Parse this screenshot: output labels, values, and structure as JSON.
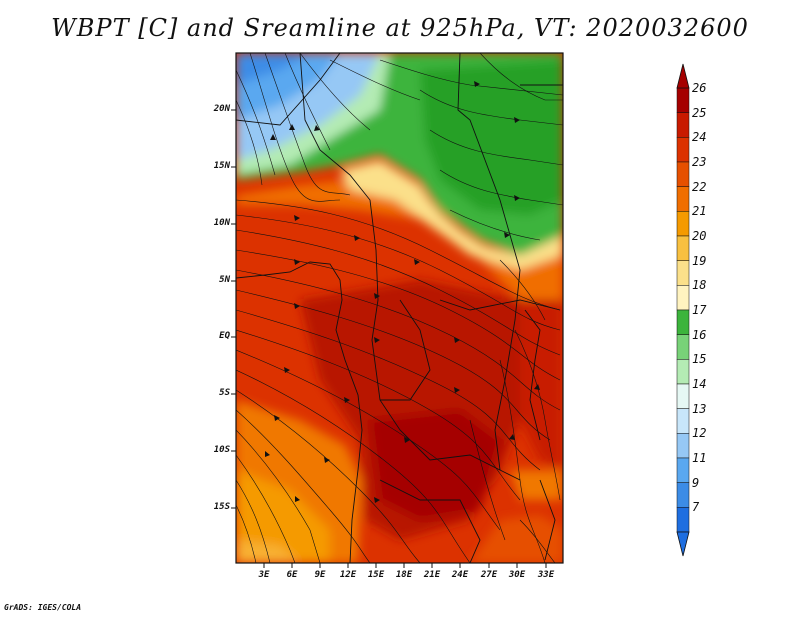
{
  "title": "WBPT [C] and Sreamline at 925hPa, VT: 2020032600",
  "credit": "GrADS: IGES/COLA",
  "map": {
    "variable": "Wet bulb potential temperature",
    "units": "C",
    "level": "925hPa",
    "valid_time": "2020032600",
    "lat_labels": [
      "20N",
      "15N",
      "10N",
      "5N",
      "EQ",
      "5S",
      "10S",
      "15S"
    ],
    "lon_labels": [
      "3E",
      "6E",
      "9E",
      "12E",
      "15E",
      "18E",
      "21E",
      "24E",
      "27E",
      "30E",
      "33E"
    ]
  },
  "colorbar": {
    "labels": [
      "26",
      "25",
      "24",
      "23",
      "22",
      "21",
      "20",
      "19",
      "18",
      "17",
      "16",
      "15",
      "14",
      "13",
      "12",
      "11",
      "9",
      "7"
    ],
    "colors": [
      "#a50000",
      "#c81a00",
      "#dc3200",
      "#e65000",
      "#f06e00",
      "#f59a00",
      "#f8c040",
      "#fbe08a",
      "#fff3c0",
      "#3cb43c",
      "#78d278",
      "#b4ebb4",
      "#e6f8f4",
      "#c8e6fa",
      "#96c8f5",
      "#5aa8f0",
      "#3c8ce6",
      "#1e6ee0"
    ]
  }
}
